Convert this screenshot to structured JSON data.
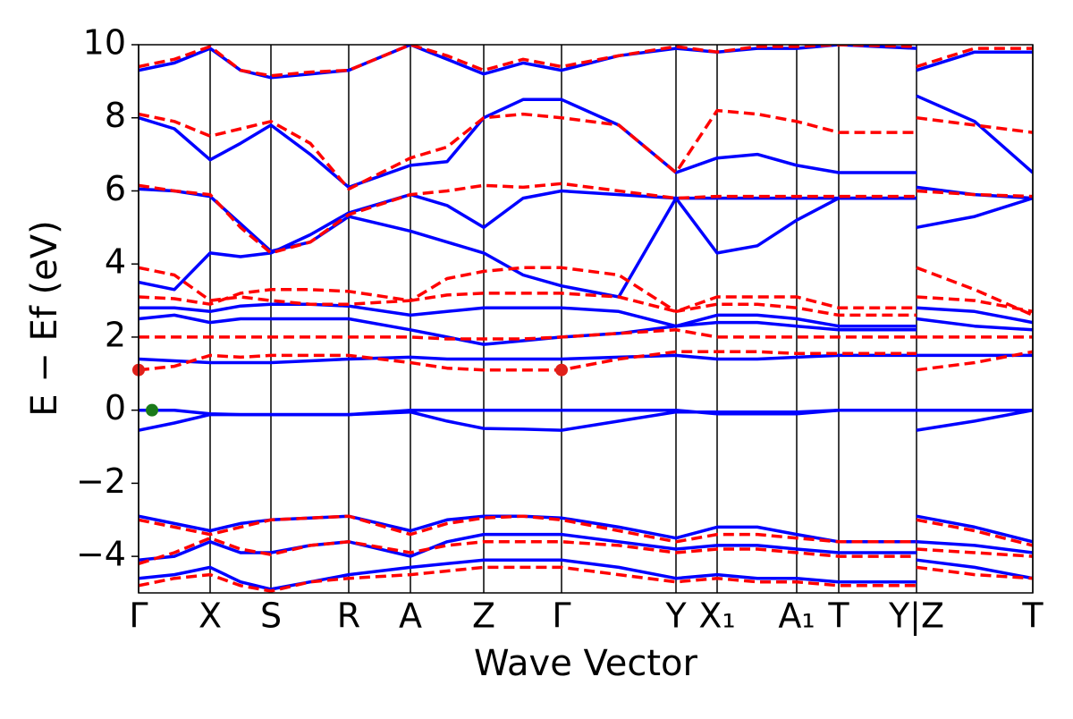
{
  "chart_data": {
    "type": "band",
    "xlabel": "Wave Vector",
    "ylabel": "E − Ef (eV)",
    "xlim": [
      0,
      1000
    ],
    "ylim": [
      -5,
      10
    ],
    "yticks": [
      {
        "value": -4,
        "label": "−4"
      },
      {
        "value": -2,
        "label": "−2"
      },
      0,
      2,
      4,
      6,
      8,
      10
    ],
    "xticks": [
      {
        "value": 0,
        "label": "Γ"
      },
      {
        "value": 80,
        "label": "X"
      },
      {
        "value": 148,
        "label": "S"
      },
      {
        "value": 235,
        "label": "R"
      },
      {
        "value": 304,
        "label": "A"
      },
      {
        "value": 386,
        "label": "Z"
      },
      {
        "value": 473,
        "label": "Γ"
      },
      {
        "value": 601,
        "label": "Y"
      },
      {
        "value": 647,
        "label": "X₁"
      },
      {
        "value": 736,
        "label": "A₁"
      },
      {
        "value": 783,
        "label": "T"
      },
      {
        "value": 870,
        "label": "Y|Z"
      },
      {
        "value": 1000,
        "label": "T"
      }
    ],
    "x": [
      0,
      40,
      80,
      114,
      148,
      192,
      235,
      304,
      345,
      386,
      430,
      473,
      537,
      601,
      647,
      692,
      736,
      783,
      870,
      870,
      870,
      935,
      1000
    ],
    "series": [
      {
        "color": "#0000ff",
        "dashed": false,
        "values": [
          0,
          0,
          -0.1,
          -0.12,
          -0.12,
          -0.12,
          -0.12,
          0,
          0,
          0,
          0,
          0,
          0,
          0,
          -0.1,
          -0.1,
          -0.1,
          0,
          0,
          null,
          0,
          0,
          0
        ]
      },
      {
        "color": "#0000ff",
        "dashed": false,
        "values": [
          -0.55,
          -0.35,
          -0.12,
          -0.12,
          -0.12,
          -0.12,
          -0.12,
          -0.05,
          -0.3,
          -0.5,
          -0.52,
          -0.55,
          -0.3,
          -0.05,
          -0.05,
          -0.05,
          -0.05,
          0,
          0,
          null,
          -0.55,
          -0.3,
          0
        ]
      },
      {
        "color": "#0000ff",
        "dashed": false,
        "values": [
          1.4,
          1.35,
          1.3,
          1.3,
          1.3,
          1.35,
          1.4,
          1.45,
          1.4,
          1.4,
          1.4,
          1.4,
          1.45,
          1.5,
          1.4,
          1.4,
          1.45,
          1.5,
          1.5,
          null,
          1.5,
          1.5,
          1.5
        ]
      },
      {
        "color": "#0000ff",
        "dashed": false,
        "values": [
          2.5,
          2.6,
          2.4,
          2.5,
          2.5,
          2.5,
          2.5,
          2.2,
          2.0,
          1.8,
          1.9,
          2.0,
          2.1,
          2.3,
          2.4,
          2.4,
          2.3,
          2.2,
          2.2,
          null,
          2.5,
          2.3,
          2.2
        ]
      },
      {
        "color": "#0000ff",
        "dashed": false,
        "values": [
          2.8,
          2.8,
          2.7,
          2.85,
          2.9,
          2.9,
          2.85,
          2.6,
          2.7,
          2.8,
          2.8,
          2.8,
          2.7,
          2.3,
          2.6,
          2.6,
          2.5,
          2.3,
          2.3,
          null,
          2.8,
          2.7,
          2.4
        ]
      },
      {
        "color": "#0000ff",
        "dashed": false,
        "values": [
          3.5,
          3.3,
          4.3,
          4.2,
          4.3,
          4.8,
          5.4,
          5.9,
          5.6,
          5.0,
          5.8,
          6.0,
          5.9,
          5.8,
          5.8,
          5.8,
          5.8,
          5.8,
          5.8,
          null,
          5.0,
          5.3,
          5.8
        ]
      },
      {
        "color": "#0000ff",
        "dashed": false,
        "values": [
          6.05,
          6.0,
          5.85,
          5.1,
          4.35,
          4.6,
          5.3,
          4.9,
          4.6,
          4.3,
          3.7,
          3.4,
          3.1,
          5.8,
          4.3,
          4.5,
          5.2,
          5.8,
          5.8,
          null,
          6.1,
          5.9,
          5.8
        ]
      },
      {
        "color": "#0000ff",
        "dashed": false,
        "values": [
          8.0,
          7.7,
          6.85,
          7.3,
          7.8,
          7.0,
          6.1,
          6.7,
          6.8,
          8.0,
          8.5,
          8.5,
          7.8,
          6.5,
          6.9,
          7.0,
          6.7,
          6.5,
          6.5,
          null,
          8.6,
          7.9,
          6.5
        ]
      },
      {
        "color": "#0000ff",
        "dashed": false,
        "values": [
          9.3,
          9.5,
          9.9,
          9.3,
          9.1,
          9.2,
          9.3,
          10,
          9.6,
          9.2,
          9.5,
          9.3,
          9.7,
          9.9,
          9.8,
          9.9,
          9.9,
          10,
          9.9,
          null,
          9.3,
          9.8,
          9.8
        ]
      },
      {
        "color": "#0000ff",
        "dashed": false,
        "values": [
          -2.9,
          -3.1,
          -3.3,
          -3.1,
          -3.0,
          -2.95,
          -2.9,
          -3.3,
          -3.0,
          -2.9,
          -2.9,
          -2.95,
          -3.2,
          -3.5,
          -3.2,
          -3.2,
          -3.4,
          -3.6,
          -3.6,
          null,
          -2.9,
          -3.2,
          -3.6
        ]
      },
      {
        "color": "#0000ff",
        "dashed": false,
        "values": [
          -4.1,
          -4.0,
          -3.6,
          -3.9,
          -3.9,
          -3.7,
          -3.6,
          -4.0,
          -3.6,
          -3.4,
          -3.4,
          -3.4,
          -3.6,
          -3.8,
          -3.7,
          -3.7,
          -3.8,
          -3.9,
          -3.9,
          null,
          -3.6,
          -3.7,
          -3.9
        ]
      },
      {
        "color": "#0000ff",
        "dashed": false,
        "values": [
          -4.6,
          -4.5,
          -4.3,
          -4.7,
          -4.9,
          -4.7,
          -4.5,
          -4.3,
          -4.2,
          -4.1,
          -4.1,
          -4.1,
          -4.3,
          -4.6,
          -4.5,
          -4.6,
          -4.6,
          -4.7,
          -4.7,
          null,
          -4.1,
          -4.3,
          -4.6
        ]
      },
      {
        "color": "#ff0000",
        "dashed": true,
        "values": [
          1.1,
          1.2,
          1.5,
          1.45,
          1.5,
          1.5,
          1.5,
          1.3,
          1.15,
          1.1,
          1.1,
          1.1,
          1.4,
          1.6,
          1.6,
          1.6,
          1.55,
          1.55,
          1.55,
          null,
          1.1,
          1.3,
          1.6
        ]
      },
      {
        "color": "#ff0000",
        "dashed": true,
        "values": [
          2.0,
          2.0,
          2.0,
          2.0,
          2.0,
          2.0,
          2.0,
          2.0,
          1.95,
          1.95,
          1.95,
          2.0,
          2.1,
          2.2,
          2.0,
          2.0,
          2.0,
          2.0,
          2.0,
          null,
          2.0,
          2.0,
          2.0
        ]
      },
      {
        "color": "#ff0000",
        "dashed": true,
        "values": [
          3.1,
          3.05,
          2.9,
          3.2,
          3.3,
          3.3,
          3.25,
          3.0,
          3.15,
          3.2,
          3.2,
          3.2,
          3.1,
          2.7,
          3.1,
          3.1,
          3.1,
          2.8,
          2.8,
          null,
          3.1,
          3.0,
          2.7
        ]
      },
      {
        "color": "#ff0000",
        "dashed": true,
        "values": [
          3.9,
          3.7,
          3.0,
          3.1,
          3.0,
          2.9,
          2.9,
          3.0,
          3.6,
          3.8,
          3.9,
          3.9,
          3.7,
          2.7,
          2.9,
          2.9,
          2.8,
          2.6,
          2.6,
          null,
          3.9,
          3.3,
          2.6
        ]
      },
      {
        "color": "#ff0000",
        "dashed": true,
        "values": [
          6.15,
          6.0,
          5.9,
          5.0,
          4.3,
          4.6,
          5.35,
          5.9,
          6.0,
          6.15,
          6.1,
          6.2,
          6.0,
          5.8,
          5.85,
          5.85,
          5.85,
          5.85,
          5.85,
          null,
          6.0,
          5.9,
          5.85
        ]
      },
      {
        "color": "#ff0000",
        "dashed": true,
        "values": [
          8.1,
          7.9,
          7.5,
          7.7,
          7.9,
          7.3,
          6.05,
          6.9,
          7.2,
          8.0,
          8.1,
          8.0,
          7.8,
          6.5,
          8.2,
          8.1,
          7.9,
          7.6,
          7.6,
          null,
          8.0,
          7.8,
          7.6
        ]
      },
      {
        "color": "#ff0000",
        "dashed": true,
        "values": [
          9.4,
          9.6,
          9.95,
          9.3,
          9.15,
          9.25,
          9.3,
          10,
          9.7,
          9.3,
          9.6,
          9.4,
          9.7,
          9.95,
          9.8,
          9.95,
          9.95,
          10,
          9.95,
          null,
          9.4,
          9.9,
          9.9
        ]
      },
      {
        "color": "#ff0000",
        "dashed": true,
        "values": [
          -3.0,
          -3.2,
          -3.4,
          -3.2,
          -3.0,
          -2.95,
          -2.9,
          -3.4,
          -3.1,
          -2.95,
          -2.9,
          -3.0,
          -3.3,
          -3.6,
          -3.4,
          -3.4,
          -3.5,
          -3.6,
          -3.6,
          null,
          -3.0,
          -3.3,
          -3.7
        ]
      },
      {
        "color": "#ff0000",
        "dashed": true,
        "values": [
          -4.2,
          -3.9,
          -3.5,
          -3.8,
          -3.95,
          -3.7,
          -3.6,
          -3.9,
          -3.7,
          -3.6,
          -3.6,
          -3.6,
          -3.7,
          -3.9,
          -3.8,
          -3.8,
          -3.9,
          -4.0,
          -4.0,
          null,
          -3.8,
          -3.9,
          -4.0
        ]
      },
      {
        "color": "#ff0000",
        "dashed": true,
        "values": [
          -4.8,
          -4.6,
          -4.5,
          -4.8,
          -4.95,
          -4.7,
          -4.6,
          -4.5,
          -4.4,
          -4.3,
          -4.3,
          -4.3,
          -4.5,
          -4.7,
          -4.6,
          -4.7,
          -4.7,
          -4.8,
          -4.8,
          null,
          -4.3,
          -4.5,
          -4.6
        ]
      }
    ],
    "points": [
      {
        "x": 15,
        "y": 0,
        "color": "#1a7a1a"
      },
      {
        "x": 0,
        "y": 1.1,
        "color": "#e0201a"
      },
      {
        "x": 473,
        "y": 1.1,
        "color": "#e0201a"
      }
    ]
  }
}
